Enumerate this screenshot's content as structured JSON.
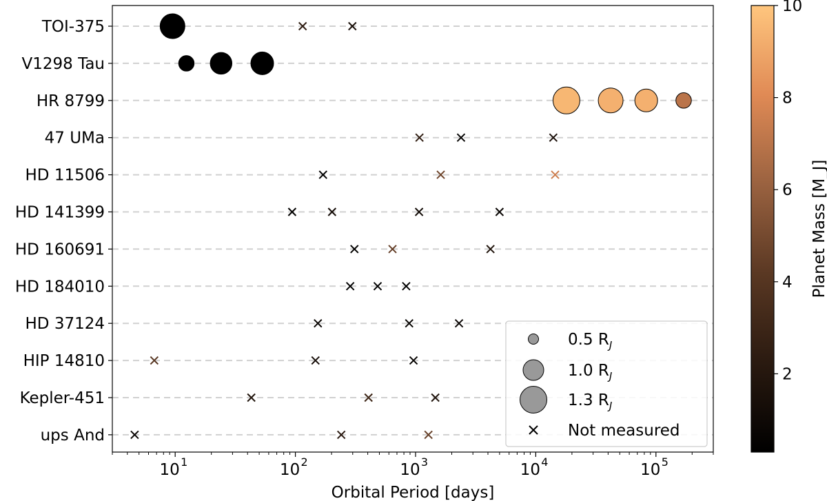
{
  "chart_data": {
    "type": "scatter",
    "title": "",
    "xlabel": "Orbital Period [days]",
    "ylabel": "",
    "xscale": "log",
    "xlim": [
      3,
      300000
    ],
    "xticks": [
      10,
      100,
      1000,
      10000,
      100000
    ],
    "xtick_base": "10",
    "xtick_exponents": [
      "1",
      "2",
      "3",
      "4",
      "5"
    ],
    "grid": "horizontal dashed",
    "categories": [
      "TOI-375",
      "V1298 Tau",
      "HR 8799",
      "47 UMa",
      "HD 11506",
      "HD 141399",
      "HD 160691",
      "HD 184010",
      "HD 37124",
      "HIP 14810",
      "Kepler-451",
      "ups And"
    ],
    "colorbar": {
      "label": "Planet Mass [M_J]",
      "range": [
        0.3,
        10
      ],
      "ticks": [
        "2",
        "4",
        "6",
        "8",
        "10"
      ],
      "tick_values": [
        2,
        4,
        6,
        8,
        10
      ]
    },
    "colors": {
      "cmap_start": "#000000",
      "cmap_mid": "#a0643e",
      "cmap_end": "#ffc67e",
      "marker_edge": "#000000",
      "grid": "#d0d0d0"
    },
    "legend": {
      "position": "lower right",
      "entries": [
        {
          "label": "0.5 R",
          "sub": "J",
          "radius_rj": 0.5
        },
        {
          "label": "1.0 R",
          "sub": "J",
          "radius_rj": 1.0
        },
        {
          "label": "1.3 R",
          "sub": "J",
          "radius_rj": 1.3
        },
        {
          "label": "Not measured",
          "sub": "",
          "radius_rj": null
        }
      ]
    },
    "planets": [
      {
        "system": "TOI-375",
        "period": 9.5,
        "mass": 0.3,
        "radius_rj": 1.2
      },
      {
        "system": "TOI-375",
        "period": 115,
        "mass": 2.5,
        "radius_rj": null
      },
      {
        "system": "TOI-375",
        "period": 298,
        "mass": 1.5,
        "radius_rj": null
      },
      {
        "system": "V1298 Tau",
        "period": 12.4,
        "mass": 0.3,
        "radius_rj": 0.75
      },
      {
        "system": "V1298 Tau",
        "period": 24.1,
        "mass": 0.3,
        "radius_rj": 1.05
      },
      {
        "system": "V1298 Tau",
        "period": 53,
        "mass": 0.3,
        "radius_rj": 1.1
      },
      {
        "system": "HR 8799",
        "period": 18000,
        "mass": 9.5,
        "radius_rj": 1.3
      },
      {
        "system": "HR 8799",
        "period": 42000,
        "mass": 9.3,
        "radius_rj": 1.2
      },
      {
        "system": "HR 8799",
        "period": 83000,
        "mass": 9.3,
        "radius_rj": 1.1
      },
      {
        "system": "HR 8799",
        "period": 170000,
        "mass": 7.0,
        "radius_rj": 0.75
      },
      {
        "system": "47 UMa",
        "period": 1078,
        "mass": 2.5,
        "radius_rj": null
      },
      {
        "system": "47 UMa",
        "period": 2390,
        "mass": 0.5,
        "radius_rj": null
      },
      {
        "system": "47 UMa",
        "period": 14000,
        "mass": 1.6,
        "radius_rj": null
      },
      {
        "system": "HD 11506",
        "period": 170,
        "mass": 0.4,
        "radius_rj": null
      },
      {
        "system": "HD 11506",
        "period": 1620,
        "mass": 4.8,
        "radius_rj": null
      },
      {
        "system": "HD 11506",
        "period": 14500,
        "mass": 7.5,
        "radius_rj": null
      },
      {
        "system": "HD 141399",
        "period": 94,
        "mass": 0.5,
        "radius_rj": null
      },
      {
        "system": "HD 141399",
        "period": 202,
        "mass": 1.3,
        "radius_rj": null
      },
      {
        "system": "HD 141399",
        "period": 1070,
        "mass": 1.2,
        "radius_rj": null
      },
      {
        "system": "HD 141399",
        "period": 5000,
        "mass": 0.7,
        "radius_rj": null
      },
      {
        "system": "HD 160691",
        "period": 310,
        "mass": 0.5,
        "radius_rj": null
      },
      {
        "system": "HD 160691",
        "period": 643,
        "mass": 4.5,
        "radius_rj": null
      },
      {
        "system": "HD 160691",
        "period": 4200,
        "mass": 1.8,
        "radius_rj": null
      },
      {
        "system": "HD 184010",
        "period": 286,
        "mass": 0.3,
        "radius_rj": null
      },
      {
        "system": "HD 184010",
        "period": 484,
        "mass": 0.3,
        "radius_rj": null
      },
      {
        "system": "HD 184010",
        "period": 836,
        "mass": 0.3,
        "radius_rj": null
      },
      {
        "system": "HD 37124",
        "period": 154,
        "mass": 0.7,
        "radius_rj": null
      },
      {
        "system": "HD 37124",
        "period": 885,
        "mass": 0.6,
        "radius_rj": null
      },
      {
        "system": "HD 37124",
        "period": 2300,
        "mass": 0.7,
        "radius_rj": null
      },
      {
        "system": "HIP 14810",
        "period": 6.7,
        "mass": 4.0,
        "radius_rj": null
      },
      {
        "system": "HIP 14810",
        "period": 147,
        "mass": 1.3,
        "radius_rj": null
      },
      {
        "system": "HIP 14810",
        "period": 962,
        "mass": 0.6,
        "radius_rj": null
      },
      {
        "system": "Kepler-451",
        "period": 43,
        "mass": 1.8,
        "radius_rj": null
      },
      {
        "system": "Kepler-451",
        "period": 406,
        "mass": 3.0,
        "radius_rj": null
      },
      {
        "system": "Kepler-451",
        "period": 1460,
        "mass": 1.8,
        "radius_rj": null
      },
      {
        "system": "ups And",
        "period": 4.6,
        "mass": 0.7,
        "radius_rj": null
      },
      {
        "system": "ups And",
        "period": 241,
        "mass": 2.2,
        "radius_rj": null
      },
      {
        "system": "ups And",
        "period": 1280,
        "mass": 4.5,
        "radius_rj": null
      }
    ]
  }
}
